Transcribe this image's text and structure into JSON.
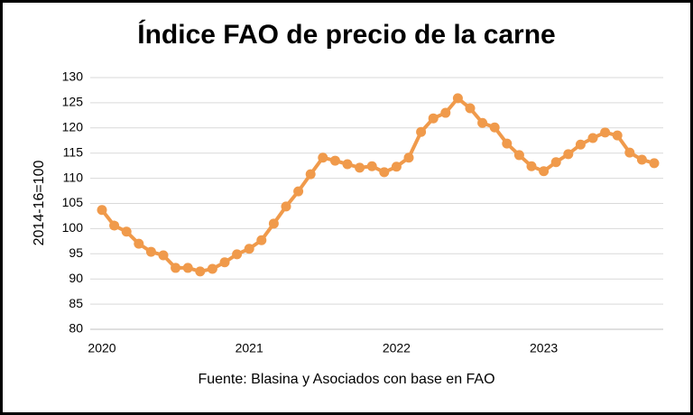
{
  "chart_data": {
    "type": "line",
    "title": "Índice FAO de precio de la carne",
    "y_label": "2014-16=100",
    "source": "Fuente: Blasina y Asociados con base en FAO",
    "categories": [
      "2020",
      null,
      null,
      null,
      null,
      null,
      null,
      null,
      null,
      null,
      null,
      null,
      "2021",
      null,
      null,
      null,
      null,
      null,
      null,
      null,
      null,
      null,
      null,
      null,
      "2022",
      null,
      null,
      null,
      null,
      null,
      null,
      null,
      null,
      null,
      null,
      null,
      "2023",
      null,
      null,
      null,
      null,
      null,
      null,
      null,
      null,
      null
    ],
    "series": [
      {
        "name": "Índice FAO de precio de la carne",
        "color": "#F09A4B",
        "values": [
          103.7,
          100.6,
          99.4,
          97.0,
          95.4,
          94.7,
          92.2,
          92.2,
          91.5,
          92.0,
          93.3,
          94.9,
          96.0,
          97.7,
          101.0,
          104.4,
          107.4,
          110.8,
          114.1,
          113.5,
          112.8,
          112.1,
          112.4,
          111.2,
          112.3,
          114.1,
          119.2,
          121.9,
          123.0,
          125.9,
          123.9,
          121.0,
          120.1,
          116.9,
          114.6,
          112.4,
          111.4,
          113.2,
          114.8,
          116.7,
          118.0,
          119.1,
          118.5,
          115.1,
          113.7,
          113.0
        ]
      }
    ],
    "ylim": [
      80,
      130
    ],
    "yticks": [
      80,
      85,
      90,
      95,
      100,
      105,
      110,
      115,
      120,
      125,
      130
    ],
    "grid": true
  }
}
